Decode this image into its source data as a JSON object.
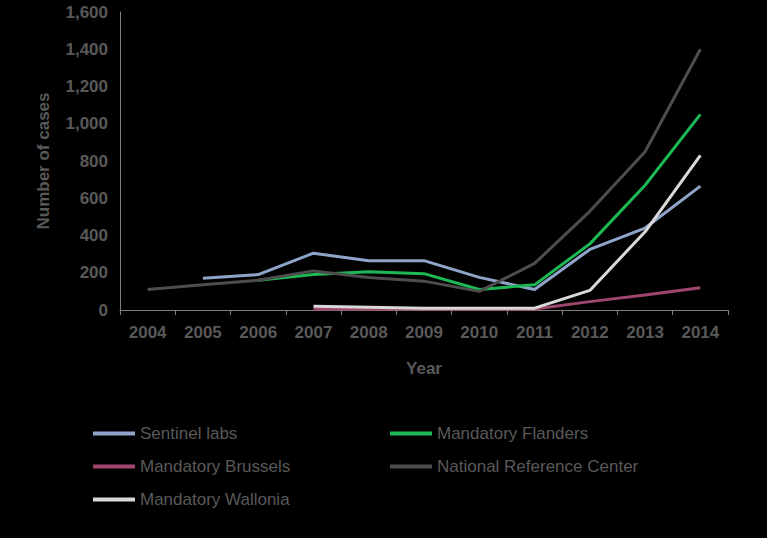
{
  "chart_data": {
    "type": "line",
    "x_label": "Year",
    "y_label": "Number of cases",
    "categories": [
      "2004",
      "2005",
      "2006",
      "2007",
      "2008",
      "2009",
      "2010",
      "2011",
      "2012",
      "2013",
      "2014"
    ],
    "ylim": [
      0,
      1600
    ],
    "yticks": [
      0,
      200,
      400,
      600,
      800,
      1000,
      1200,
      1400,
      1600
    ],
    "grid": false,
    "legend": "bottom",
    "series": [
      {
        "name": "Sentinel labs",
        "color": "#8ea4c8",
        "values": [
          null,
          170,
          190,
          305,
          265,
          265,
          175,
          110,
          325,
          440,
          665
        ]
      },
      {
        "name": "Mandatory Flanders",
        "color": "#1db954",
        "values": [
          null,
          null,
          160,
          190,
          205,
          195,
          110,
          135,
          355,
          670,
          1050
        ]
      },
      {
        "name": "Mandatory Brussels",
        "color": "#a0466e",
        "values": [
          null,
          null,
          null,
          5,
          5,
          5,
          5,
          5,
          45,
          80,
          120
        ]
      },
      {
        "name": "National Reference Center",
        "color": "#4d4d4d",
        "values": [
          110,
          135,
          160,
          210,
          175,
          155,
          100,
          250,
          530,
          850,
          1400
        ]
      },
      {
        "name": "Mandatory Wallonia",
        "color": "#d9d9d9",
        "values": [
          null,
          null,
          null,
          20,
          15,
          10,
          10,
          10,
          105,
          420,
          830
        ]
      }
    ]
  }
}
